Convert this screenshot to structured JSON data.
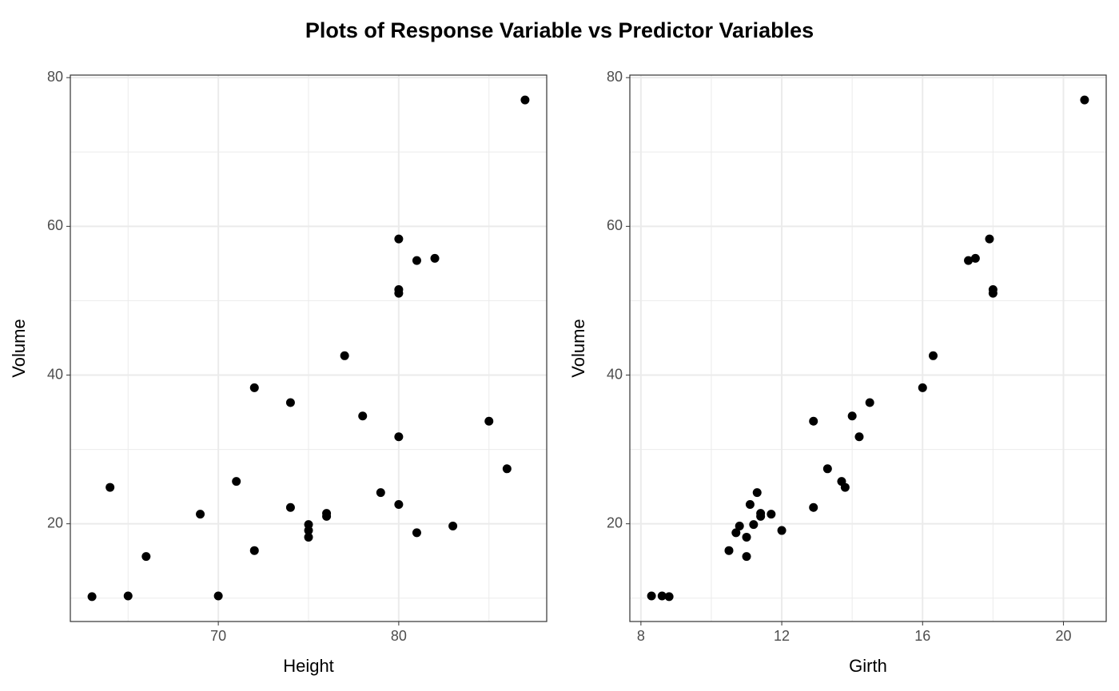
{
  "title": "Plots of Response Variable vs Predictor Variables",
  "chart_data": [
    {
      "type": "scatter",
      "x_label": "Height",
      "y_label": "Volume",
      "color": "#000000",
      "x": [
        70,
        65,
        63,
        72,
        81,
        83,
        66,
        75,
        80,
        75,
        79,
        76,
        76,
        69,
        75,
        74,
        85,
        86,
        71,
        64,
        78,
        80,
        74,
        72,
        77,
        81,
        82,
        80,
        80,
        80,
        87
      ],
      "values": [
        10.3,
        10.3,
        10.2,
        16.4,
        18.8,
        19.7,
        15.6,
        18.2,
        22.6,
        19.9,
        24.2,
        21.0,
        21.4,
        21.3,
        19.1,
        22.2,
        33.8,
        27.4,
        25.7,
        24.9,
        34.5,
        31.7,
        36.3,
        38.3,
        42.6,
        55.4,
        55.7,
        58.3,
        51.5,
        51.0,
        77.0
      ],
      "xlim": [
        61.8,
        88.2
      ],
      "ylim": [
        6.86,
        80.34
      ],
      "xticks": [
        70,
        80
      ],
      "yticks": [
        20,
        40,
        60,
        80
      ],
      "x_minor_grid": [
        65,
        75,
        85
      ],
      "y_minor_grid": [
        10,
        30,
        50,
        70
      ],
      "grid": true
    },
    {
      "type": "scatter",
      "x_label": "Girth",
      "y_label": "Volume",
      "color": "#000000",
      "x": [
        8.3,
        8.6,
        8.8,
        10.5,
        10.7,
        10.8,
        11.0,
        11.0,
        11.1,
        11.2,
        11.3,
        11.4,
        11.4,
        11.7,
        12.0,
        12.9,
        12.9,
        13.3,
        13.7,
        13.8,
        14.0,
        14.2,
        14.5,
        16.0,
        16.3,
        17.3,
        17.5,
        17.9,
        18.0,
        18.0,
        20.6
      ],
      "values": [
        10.3,
        10.3,
        10.2,
        16.4,
        18.8,
        19.7,
        15.6,
        18.2,
        22.6,
        19.9,
        24.2,
        21.0,
        21.4,
        21.3,
        19.1,
        22.2,
        33.8,
        27.4,
        25.7,
        24.9,
        34.5,
        31.7,
        36.3,
        38.3,
        42.6,
        55.4,
        55.7,
        58.3,
        51.5,
        51.0,
        77.0
      ],
      "xlim": [
        7.685,
        21.215
      ],
      "ylim": [
        6.86,
        80.34
      ],
      "xticks": [
        8,
        12,
        16,
        20
      ],
      "yticks": [
        20,
        40,
        60,
        80
      ],
      "x_minor_grid": [
        10,
        14,
        18
      ],
      "y_minor_grid": [
        10,
        30,
        50,
        70
      ],
      "grid": true
    }
  ]
}
